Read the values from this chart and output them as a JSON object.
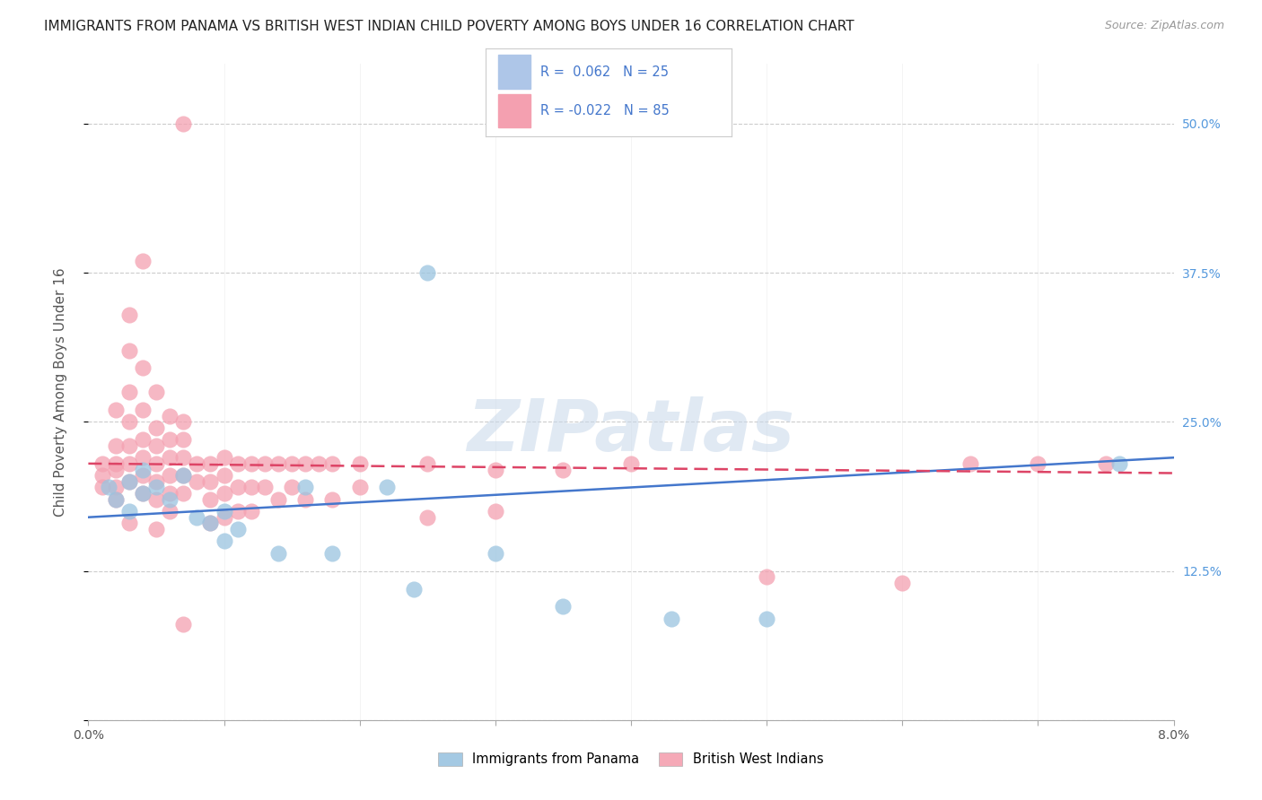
{
  "title": "IMMIGRANTS FROM PANAMA VS BRITISH WEST INDIAN CHILD POVERTY AMONG BOYS UNDER 16 CORRELATION CHART",
  "source": "Source: ZipAtlas.com",
  "ylabel": "Child Poverty Among Boys Under 16",
  "xlim": [
    0.0,
    0.08
  ],
  "ylim": [
    0.0,
    0.55
  ],
  "legend_labels_bottom": [
    "Immigrants from Panama",
    "British West Indians"
  ],
  "blue_color": "#9ac4e0",
  "pink_color": "#f4a0b0",
  "blue_line_color": "#4477cc",
  "pink_line_color": "#dd4466",
  "watermark": "ZIPatlas",
  "background_color": "#ffffff",
  "grid_color": "#cccccc",
  "blue_scatter_x": [
    0.0015,
    0.002,
    0.003,
    0.003,
    0.004,
    0.004,
    0.005,
    0.006,
    0.007,
    0.008,
    0.009,
    0.01,
    0.01,
    0.011,
    0.014,
    0.016,
    0.018,
    0.022,
    0.024,
    0.025,
    0.03,
    0.035,
    0.043,
    0.05,
    0.076
  ],
  "blue_scatter_y": [
    0.195,
    0.185,
    0.2,
    0.175,
    0.21,
    0.19,
    0.195,
    0.185,
    0.205,
    0.17,
    0.165,
    0.175,
    0.15,
    0.16,
    0.14,
    0.195,
    0.14,
    0.195,
    0.11,
    0.375,
    0.14,
    0.095,
    0.085,
    0.085,
    0.215
  ],
  "pink_scatter_x": [
    0.001,
    0.001,
    0.001,
    0.002,
    0.002,
    0.002,
    0.002,
    0.002,
    0.002,
    0.003,
    0.003,
    0.003,
    0.003,
    0.003,
    0.003,
    0.003,
    0.003,
    0.004,
    0.004,
    0.004,
    0.004,
    0.004,
    0.004,
    0.004,
    0.005,
    0.005,
    0.005,
    0.005,
    0.005,
    0.005,
    0.005,
    0.006,
    0.006,
    0.006,
    0.006,
    0.006,
    0.006,
    0.007,
    0.007,
    0.007,
    0.007,
    0.007,
    0.007,
    0.008,
    0.008,
    0.009,
    0.009,
    0.009,
    0.009,
    0.01,
    0.01,
    0.01,
    0.01,
    0.011,
    0.011,
    0.011,
    0.012,
    0.012,
    0.012,
    0.013,
    0.013,
    0.014,
    0.014,
    0.015,
    0.015,
    0.016,
    0.016,
    0.017,
    0.018,
    0.018,
    0.02,
    0.02,
    0.025,
    0.025,
    0.03,
    0.03,
    0.035,
    0.04,
    0.05,
    0.06,
    0.065,
    0.07,
    0.075,
    0.007
  ],
  "pink_scatter_y": [
    0.205,
    0.195,
    0.215,
    0.215,
    0.26,
    0.23,
    0.195,
    0.185,
    0.21,
    0.34,
    0.31,
    0.275,
    0.25,
    0.23,
    0.215,
    0.2,
    0.165,
    0.385,
    0.295,
    0.26,
    0.235,
    0.22,
    0.205,
    0.19,
    0.275,
    0.245,
    0.23,
    0.215,
    0.2,
    0.185,
    0.16,
    0.255,
    0.235,
    0.22,
    0.205,
    0.19,
    0.175,
    0.25,
    0.235,
    0.22,
    0.205,
    0.19,
    0.08,
    0.215,
    0.2,
    0.215,
    0.2,
    0.185,
    0.165,
    0.22,
    0.205,
    0.19,
    0.17,
    0.215,
    0.195,
    0.175,
    0.215,
    0.195,
    0.175,
    0.215,
    0.195,
    0.215,
    0.185,
    0.215,
    0.195,
    0.215,
    0.185,
    0.215,
    0.215,
    0.185,
    0.215,
    0.195,
    0.215,
    0.17,
    0.21,
    0.175,
    0.21,
    0.215,
    0.12,
    0.115,
    0.215,
    0.215,
    0.215,
    0.5
  ],
  "blue_line_x": [
    0.0,
    0.08
  ],
  "blue_line_y": [
    0.17,
    0.22
  ],
  "pink_line_x": [
    0.0,
    0.08
  ],
  "pink_line_y": [
    0.215,
    0.207
  ]
}
